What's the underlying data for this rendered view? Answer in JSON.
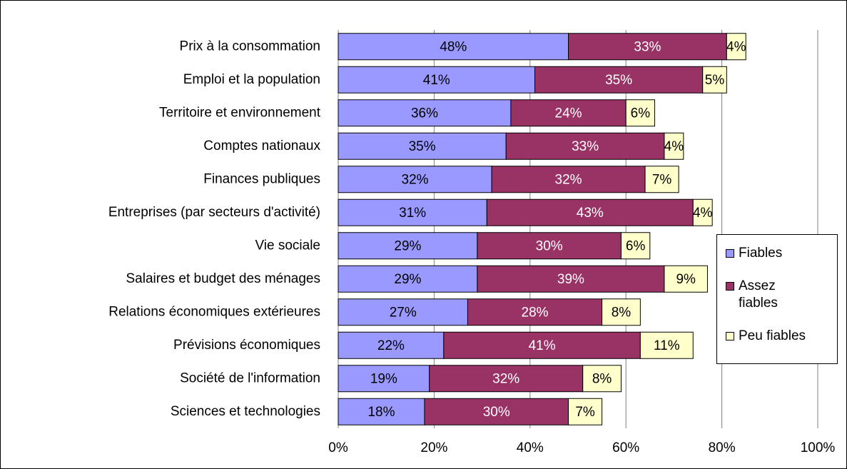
{
  "chart_data": {
    "type": "bar",
    "orientation": "horizontal",
    "stacked": true,
    "categories": [
      "Prix à la consommation",
      "Emploi et la population",
      "Territoire et environnement",
      "Comptes nationaux",
      "Finances publiques",
      "Entreprises (par secteurs d'activité)",
      "Vie sociale",
      "Salaires et budget des ménages",
      "Relations économiques extérieures",
      "Prévisions économiques",
      "Société de l'information",
      "Sciences et technologies"
    ],
    "series": [
      {
        "name": "Fiables",
        "color": "#9999ff",
        "values": [
          48,
          41,
          36,
          35,
          32,
          31,
          29,
          29,
          27,
          22,
          19,
          18
        ],
        "value_labels": [
          "48%",
          "41%",
          "36%",
          "35%",
          "32%",
          "31%",
          "29%",
          "29%",
          "27%",
          "22%",
          "19%",
          "18%"
        ]
      },
      {
        "name": "Assez fiables",
        "color": "#993366",
        "values": [
          33,
          35,
          24,
          33,
          32,
          43,
          30,
          39,
          28,
          41,
          32,
          30
        ],
        "value_labels": [
          "33%",
          "35%",
          "24%",
          "33%",
          "32%",
          "43%",
          "30%",
          "39%",
          "28%",
          "41%",
          "32%",
          "30%"
        ]
      },
      {
        "name": "Peu fiables",
        "color": "#ffffcc",
        "values": [
          4,
          5,
          6,
          4,
          7,
          4,
          6,
          9,
          8,
          11,
          8,
          7
        ],
        "value_labels": [
          "4%",
          "5%",
          "6%",
          "4%",
          "7%",
          "4%",
          "6%",
          "9%",
          "8%",
          "11%",
          "8%",
          "7%"
        ]
      }
    ],
    "xlim": [
      0,
      100
    ],
    "xticks": [
      {
        "value": 0,
        "label": "0%"
      },
      {
        "value": 20,
        "label": "20%"
      },
      {
        "value": 40,
        "label": "40%"
      },
      {
        "value": 60,
        "label": "60%"
      },
      {
        "value": 80,
        "label": "80%"
      },
      {
        "value": 100,
        "label": "100%"
      }
    ],
    "grid": true,
    "legend": "right"
  }
}
